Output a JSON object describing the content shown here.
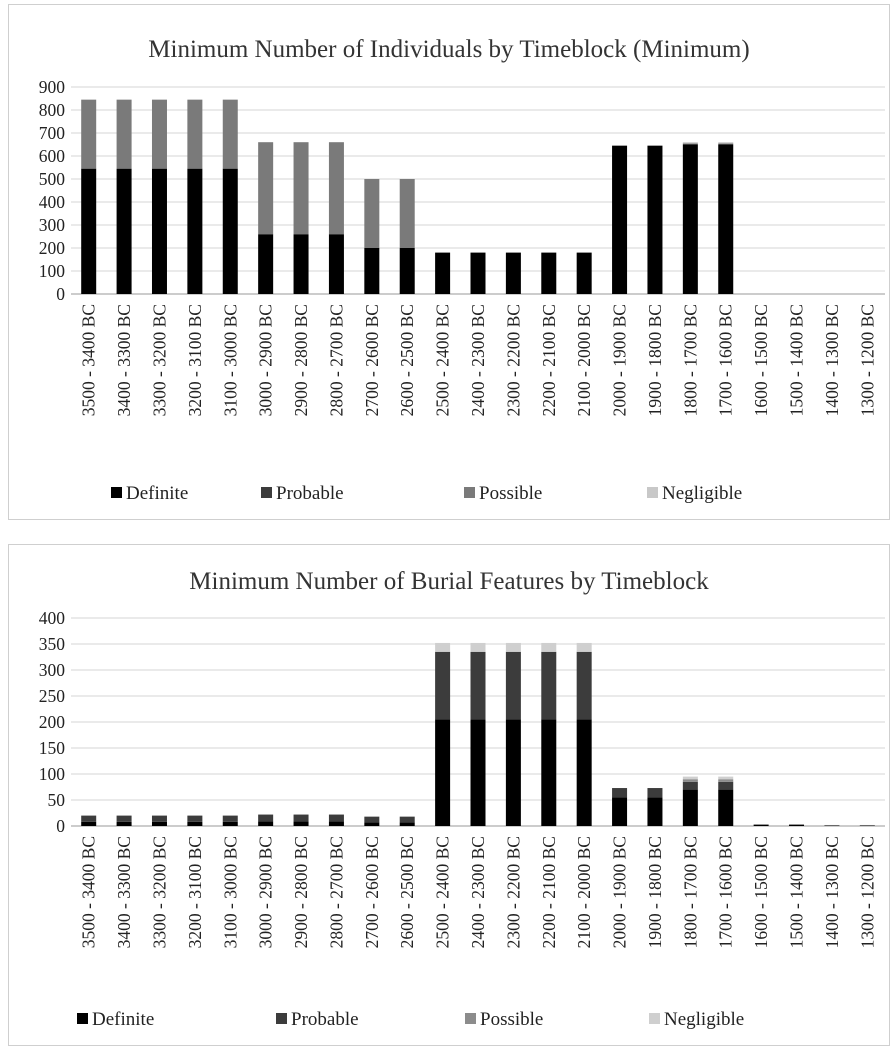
{
  "chart_data": [
    {
      "type": "bar",
      "stacked": true,
      "title": "Minimum Number of Individuals by Timeblock (Minimum)",
      "xlabel": "",
      "ylabel": "",
      "ylim": [
        0,
        900
      ],
      "yticks": [
        "900",
        "800",
        "700",
        "600",
        "500",
        "400",
        "300",
        "200",
        "100",
        "0"
      ],
      "grid": true,
      "legend_position": "bottom",
      "categories": [
        "3500 - 3400 BC",
        "3400 - 3300 BC",
        "3300 - 3200 BC",
        "3200 - 3100 BC",
        "3100 - 3000 BC",
        "3000 - 2900 BC",
        "2900 - 2800 BC",
        "2800 - 2700 BC",
        "2700 - 2600 BC",
        "2600 - 2500 BC",
        "2500 - 2400 BC",
        "2400 - 2300 BC",
        "2300 - 2200 BC",
        "2200 - 2100 BC",
        "2100 - 2000 BC",
        "2000 - 1900 BC",
        "1900 - 1800 BC",
        "1800 - 1700 BC",
        "1700 - 1600 BC",
        "1600 - 1500 BC",
        "1500 - 1400 BC",
        "1400 - 1300 BC",
        "1300 - 1200 BC"
      ],
      "series": [
        {
          "name": "Definite",
          "color": "#000000",
          "values": [
            545,
            545,
            545,
            545,
            545,
            260,
            260,
            260,
            200,
            200,
            180,
            180,
            180,
            180,
            180,
            645,
            645,
            650,
            650,
            0,
            0,
            0,
            0
          ]
        },
        {
          "name": "Probable",
          "color": "#3c3c3c",
          "values": [
            0,
            0,
            0,
            0,
            0,
            0,
            0,
            0,
            0,
            0,
            0,
            0,
            0,
            0,
            0,
            0,
            0,
            0,
            0,
            0,
            0,
            0,
            0
          ]
        },
        {
          "name": "Possible",
          "color": "#7a7a7a",
          "values": [
            300,
            300,
            300,
            300,
            300,
            400,
            400,
            400,
            300,
            300,
            0,
            0,
            0,
            0,
            0,
            0,
            0,
            5,
            5,
            0,
            0,
            0,
            0
          ]
        },
        {
          "name": "Negligible",
          "color": "#c8c8c8",
          "values": [
            0,
            0,
            0,
            0,
            0,
            0,
            0,
            0,
            0,
            0,
            0,
            0,
            0,
            0,
            0,
            0,
            0,
            5,
            5,
            0,
            0,
            0,
            0
          ]
        }
      ]
    },
    {
      "type": "bar",
      "stacked": true,
      "title": "Minimum Number of Burial Features by Timeblock",
      "xlabel": "",
      "ylabel": "",
      "ylim": [
        0,
        400
      ],
      "yticks": [
        "400",
        "350",
        "300",
        "250",
        "200",
        "150",
        "100",
        "50",
        "0"
      ],
      "grid": true,
      "legend_position": "bottom",
      "categories": [
        "3500 - 3400 BC",
        "3400 - 3300 BC",
        "3300 - 3200 BC",
        "3200 - 3100 BC",
        "3100 - 3000 BC",
        "3000 - 2900 BC",
        "2900 - 2800 BC",
        "2800 - 2700 BC",
        "2700 - 2600 BC",
        "2600 - 2500 BC",
        "2500 - 2400 BC",
        "2400 - 2300 BC",
        "2300 - 2200 BC",
        "2200 - 2100 BC",
        "2100 - 2000 BC",
        "2000 - 1900 BC",
        "1900 - 1800 BC",
        "1800 - 1700 BC",
        "1700 - 1600 BC",
        "1600 - 1500 BC",
        "1500 - 1400 BC",
        "1400 - 1300 BC",
        "1300 - 1200 BC"
      ],
      "series": [
        {
          "name": "Definite",
          "color": "#000000",
          "values": [
            8,
            8,
            8,
            8,
            8,
            9,
            9,
            9,
            7,
            7,
            205,
            205,
            205,
            205,
            205,
            55,
            55,
            70,
            70,
            2,
            2,
            1,
            1
          ]
        },
        {
          "name": "Probable",
          "color": "#3c3c3c",
          "values": [
            12,
            12,
            12,
            12,
            12,
            13,
            13,
            13,
            11,
            11,
            130,
            130,
            130,
            130,
            130,
            18,
            18,
            15,
            15,
            1,
            1,
            0,
            0
          ]
        },
        {
          "name": "Possible",
          "color": "#8c8c8c",
          "values": [
            0,
            0,
            0,
            0,
            0,
            0,
            0,
            0,
            0,
            0,
            0,
            0,
            0,
            0,
            0,
            0,
            0,
            5,
            5,
            0,
            0,
            0,
            0
          ]
        },
        {
          "name": "Negligible",
          "color": "#cfcfcf",
          "values": [
            0,
            0,
            0,
            0,
            0,
            0,
            0,
            0,
            0,
            0,
            17,
            17,
            17,
            17,
            17,
            0,
            0,
            5,
            5,
            0,
            0,
            1,
            1
          ]
        }
      ]
    }
  ]
}
